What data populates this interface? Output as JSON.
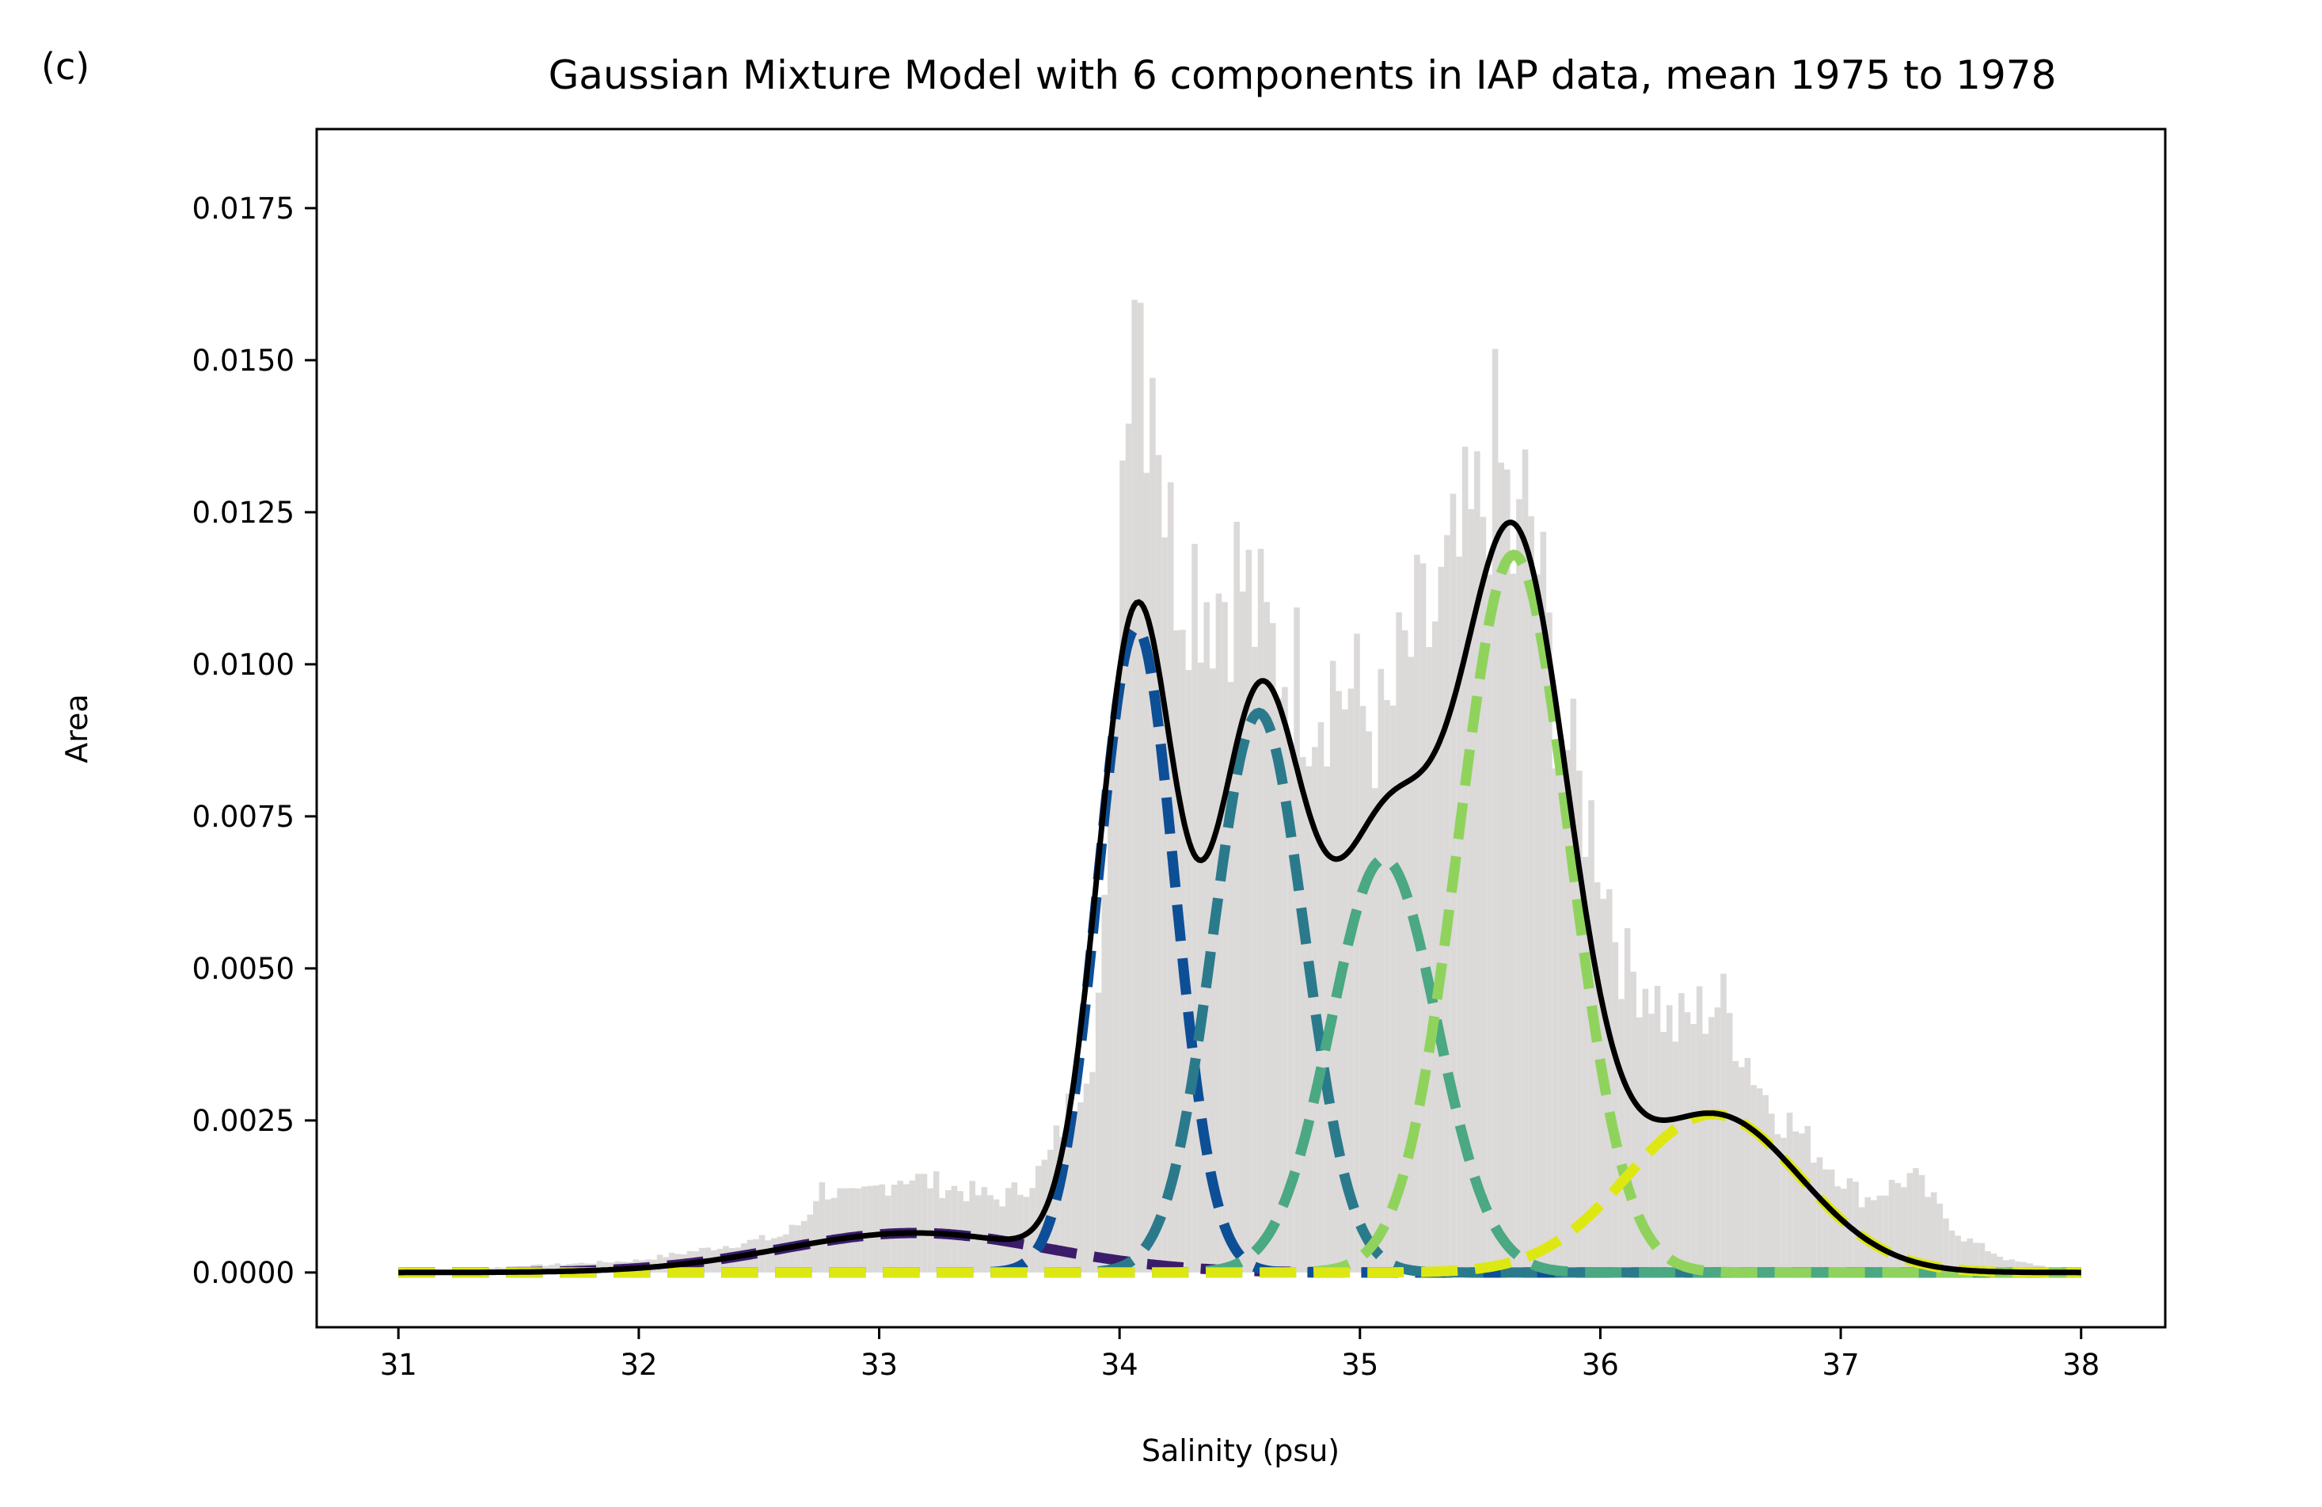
{
  "chart_data": {
    "type": "area",
    "panel_label": "(c)",
    "title": "Gaussian Mixture Model with 6 components in IAP data, mean 1975 to 1978",
    "xlabel": "Salinity (psu)",
    "ylabel": "Area",
    "xlim": [
      30.66,
      38.35
    ],
    "ylim": [
      -0.0009,
      0.0188
    ],
    "xticks": [
      31,
      32,
      33,
      34,
      35,
      36,
      37,
      38
    ],
    "yticks": [
      0.0,
      0.0025,
      0.005,
      0.0075,
      0.01,
      0.0125,
      0.015,
      0.0175
    ],
    "ytick_labels": [
      "0.0000",
      "0.0025",
      "0.0050",
      "0.0075",
      "0.0100",
      "0.0125",
      "0.0150",
      "0.0175"
    ],
    "grid": false,
    "histogram": {
      "color": "#dcd9d9",
      "bin_width": 0.025,
      "x": [
        31.0,
        31.5,
        32.0,
        32.3,
        32.6,
        32.7,
        32.75,
        32.9,
        33.1,
        33.3,
        33.5,
        33.6,
        33.7,
        33.8,
        33.9,
        33.95,
        34.0,
        34.05,
        34.08,
        34.1,
        34.15,
        34.2,
        34.3,
        34.4,
        34.5,
        34.6,
        34.7,
        34.8,
        34.9,
        35.0,
        35.1,
        35.2,
        35.3,
        35.4,
        35.5,
        35.55,
        35.6,
        35.65,
        35.7,
        35.8,
        35.9,
        36.0,
        36.1,
        36.2,
        36.3,
        36.5,
        36.7,
        36.9,
        37.1,
        37.3,
        37.5,
        37.7,
        38.0
      ],
      "values": [
        0.0,
        0.0001,
        0.0002,
        0.0004,
        0.0006,
        0.0009,
        0.0014,
        0.0012,
        0.0016,
        0.0014,
        0.0012,
        0.0014,
        0.0018,
        0.0028,
        0.004,
        0.0062,
        0.012,
        0.0175,
        0.0166,
        0.015,
        0.0155,
        0.012,
        0.0116,
        0.0112,
        0.0115,
        0.0104,
        0.01,
        0.0095,
        0.0098,
        0.0093,
        0.0088,
        0.0102,
        0.0106,
        0.0115,
        0.0124,
        0.0134,
        0.013,
        0.0115,
        0.0128,
        0.0098,
        0.008,
        0.007,
        0.005,
        0.0048,
        0.004,
        0.0045,
        0.0028,
        0.002,
        0.0012,
        0.0016,
        0.0006,
        0.0002,
        0.0
      ]
    },
    "series": [
      {
        "kind": "component",
        "color": "#3b1c6b",
        "mean": 33.15,
        "std": 0.55,
        "peak": 0.00065
      },
      {
        "kind": "component",
        "color": "#0d4f96",
        "mean": 34.07,
        "std": 0.16,
        "peak": 0.0106
      },
      {
        "kind": "component",
        "color": "#2a7a8c",
        "mean": 34.58,
        "std": 0.19,
        "peak": 0.0092
      },
      {
        "kind": "component",
        "color": "#4aa882",
        "mean": 35.1,
        "std": 0.22,
        "peak": 0.0068
      },
      {
        "kind": "component",
        "color": "#8fd35d",
        "mean": 35.64,
        "std": 0.23,
        "peak": 0.0118
      },
      {
        "kind": "component",
        "color": "#dde813",
        "mean": 36.47,
        "std": 0.36,
        "peak": 0.0026
      },
      {
        "kind": "total",
        "color": "#000000"
      }
    ]
  }
}
